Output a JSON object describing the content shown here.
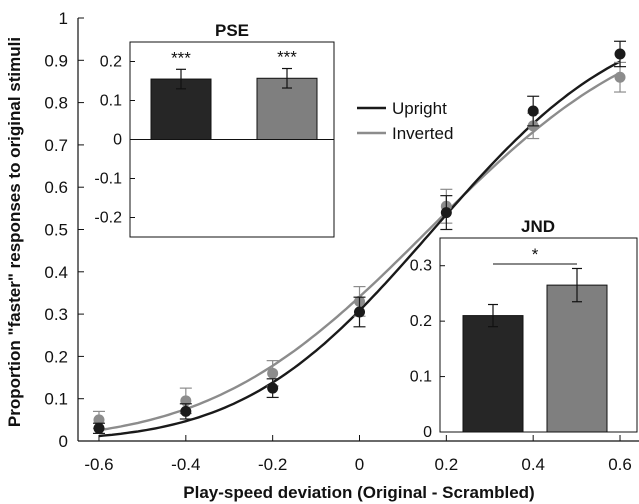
{
  "chart_data": [
    {
      "type": "line",
      "title": "",
      "xlabel": "Play-speed deviation (Original - Scrambled)",
      "ylabel": "Proportion \"faster\" responses to original stimuli",
      "xlim": [
        -0.65,
        0.65
      ],
      "ylim": [
        0,
        1
      ],
      "xticks": [
        -0.6,
        -0.4,
        -0.2,
        0,
        0.2,
        0.4,
        0.6
      ],
      "xtick_labels": [
        "-0.6",
        "-0.4",
        "-0.2",
        "0",
        "0.2",
        "0.4",
        "0.6"
      ],
      "yticks": [
        0,
        0.1,
        0.2,
        0.3,
        0.4,
        0.5,
        0.6,
        0.7,
        0.8,
        0.9,
        1
      ],
      "ytick_labels": [
        "0",
        "0.1",
        "0.2",
        "0.3",
        "0.4",
        "0.5",
        "0.6",
        "0.7",
        "0.8",
        "0.9",
        "1"
      ],
      "grid": false,
      "legend_position": "upper-center",
      "x": [
        -0.6,
        -0.4,
        -0.2,
        0,
        0.2,
        0.4,
        0.6
      ],
      "series": [
        {
          "name": "Upright",
          "color": "#1a1a1a",
          "points": [
            0.03,
            0.07,
            0.125,
            0.305,
            0.54,
            0.78,
            0.915
          ],
          "errors": [
            0.012,
            0.018,
            0.022,
            0.035,
            0.04,
            0.035,
            0.03
          ],
          "fit": {
            "mu": 0.17,
            "sigma": 0.34
          }
        },
        {
          "name": "Inverted",
          "color": "#8c8c8c",
          "points": [
            0.05,
            0.095,
            0.16,
            0.33,
            0.555,
            0.745,
            0.86
          ],
          "errors": [
            0.02,
            0.03,
            0.03,
            0.035,
            0.04,
            0.03,
            0.035
          ],
          "fit": {
            "mu": 0.16,
            "sigma": 0.39
          }
        }
      ]
    },
    {
      "type": "bar",
      "title": "PSE",
      "categories": [
        "Upright",
        "Inverted"
      ],
      "values": [
        0.155,
        0.157
      ],
      "errors": [
        0.025,
        0.025
      ],
      "colors": [
        "#262626",
        "#7f7f7f"
      ],
      "significance": [
        "***",
        "***"
      ],
      "ylim": [
        -0.25,
        0.25
      ],
      "yticks": [
        0.2,
        0.1,
        0,
        -0.1,
        -0.2
      ],
      "ytick_labels": [
        "0.2",
        "0.1",
        "0",
        "-0.1",
        "-0.2"
      ]
    },
    {
      "type": "bar",
      "title": "JND",
      "categories": [
        "Upright",
        "Inverted"
      ],
      "values": [
        0.21,
        0.265
      ],
      "errors": [
        0.02,
        0.03
      ],
      "colors": [
        "#262626",
        "#7f7f7f"
      ],
      "comparison_label": "*",
      "ylim": [
        0,
        0.35
      ],
      "yticks": [
        0.3,
        0.2,
        0.1,
        0
      ],
      "ytick_labels": [
        "0.3",
        "0.2",
        "0.1",
        "0"
      ]
    }
  ]
}
